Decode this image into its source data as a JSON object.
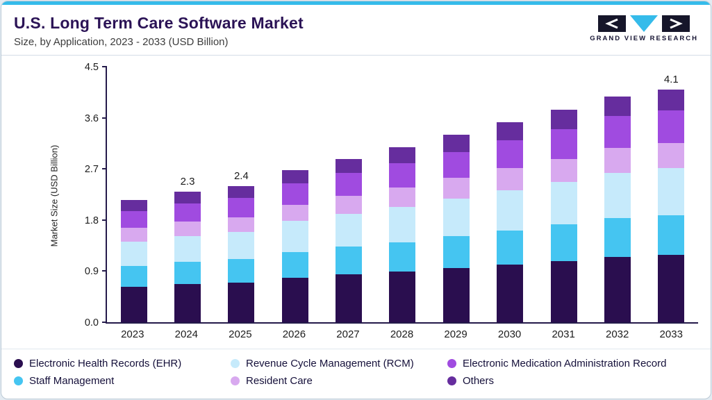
{
  "header": {
    "title": "U.S. Long Term Care Software Market",
    "subtitle": "Size, by Application, 2023 - 2033 (USD Billion)",
    "logo_text": "GRAND VIEW RESEARCH"
  },
  "colors": {
    "accent": "#35bbea",
    "axis": "#241a4a",
    "title_text": "#2b1356"
  },
  "chart_data": {
    "type": "bar",
    "stacked": true,
    "title": "U.S. Long Term Care Software Market Size, by Application, 2023 - 2033 (USD Billion)",
    "ylabel": "Market Size (USD Billion)",
    "ylim": [
      0,
      4.5
    ],
    "yticks": [
      "0.0",
      "0.9",
      "1.8",
      "2.7",
      "3.6",
      "4.5"
    ],
    "grid": false,
    "legend_position": "bottom",
    "categories": [
      "2023",
      "2024",
      "2025",
      "2026",
      "2027",
      "2028",
      "2029",
      "2030",
      "2031",
      "2032",
      "2033"
    ],
    "series": [
      {
        "name": "Electronic Health Records (EHR)",
        "color": "#2a0e4f",
        "values": [
          0.62,
          0.67,
          0.7,
          0.78,
          0.84,
          0.89,
          0.96,
          1.02,
          1.08,
          1.15,
          1.19
        ]
      },
      {
        "name": "Staff Management",
        "color": "#45c5f1",
        "values": [
          0.37,
          0.39,
          0.41,
          0.46,
          0.49,
          0.52,
          0.56,
          0.6,
          0.64,
          0.68,
          0.7
        ]
      },
      {
        "name": "Revenue Cycle Management (RCM)",
        "color": "#c6eafb",
        "values": [
          0.43,
          0.46,
          0.48,
          0.54,
          0.58,
          0.62,
          0.66,
          0.7,
          0.75,
          0.8,
          0.82
        ]
      },
      {
        "name": "Resident Care",
        "color": "#d8a9ef",
        "values": [
          0.24,
          0.25,
          0.26,
          0.29,
          0.32,
          0.34,
          0.36,
          0.39,
          0.41,
          0.44,
          0.45
        ]
      },
      {
        "name": "Electronic Medication Administration Record",
        "color": "#a04be0",
        "values": [
          0.3,
          0.32,
          0.34,
          0.37,
          0.4,
          0.43,
          0.46,
          0.49,
          0.52,
          0.56,
          0.57
        ]
      },
      {
        "name": "Others",
        "color": "#662d9e",
        "values": [
          0.19,
          0.21,
          0.21,
          0.24,
          0.25,
          0.28,
          0.3,
          0.32,
          0.34,
          0.35,
          0.37
        ]
      }
    ],
    "annotations": [
      {
        "category": "2024",
        "label": "2.3"
      },
      {
        "category": "2025",
        "label": "2.4"
      },
      {
        "category": "2033",
        "label": "4.1"
      }
    ],
    "legend_order": [
      0,
      2,
      4,
      1,
      3,
      5
    ]
  }
}
